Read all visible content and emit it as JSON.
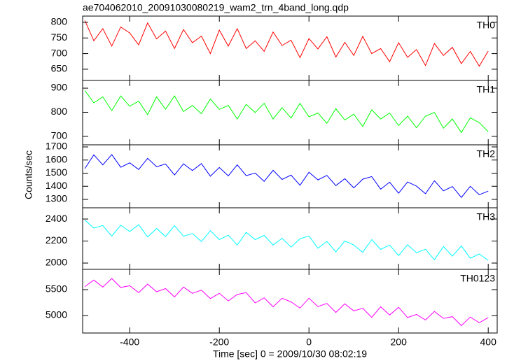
{
  "title": "ae704062010_20091030080219_wam2_trn_4band_long.qdp",
  "y_label": "Counts/sec",
  "x_label": "Time [sec] 0 = 2009/10/30 08:02:19",
  "chart_data": [
    {
      "type": "line",
      "xlim": [
        -505,
        420
      ],
      "ylim": [
        614,
        820
      ],
      "yticks": [
        650,
        700,
        750,
        800
      ],
      "x": [
        -500,
        -480,
        -460,
        -440,
        -420,
        -400,
        -380,
        -360,
        -340,
        -320,
        -300,
        -280,
        -260,
        -240,
        -220,
        -200,
        -180,
        -160,
        -140,
        -120,
        -100,
        -80,
        -60,
        -40,
        -20,
        0,
        20,
        40,
        60,
        80,
        100,
        120,
        140,
        160,
        180,
        200,
        220,
        240,
        260,
        280,
        300,
        320,
        340,
        360,
        380,
        400
      ],
      "series": [
        {
          "name": "TH0",
          "color": "#ff0000",
          "values": [
            806,
            741,
            780,
            724,
            785,
            766,
            728,
            798,
            747,
            772,
            716,
            777,
            735,
            756,
            700,
            775,
            724,
            780,
            716,
            741,
            707,
            769,
            726,
            743,
            687,
            748,
            715,
            754,
            689,
            736,
            694,
            755,
            700,
            716,
            674,
            735,
            688,
            713,
            662,
            732,
            694,
            720,
            668,
            707,
            660,
            708
          ]
        }
      ]
    },
    {
      "type": "line",
      "xlim": [
        -505,
        420
      ],
      "ylim": [
        665,
        932
      ],
      "yticks": [
        700,
        800,
        900
      ],
      "x": [
        -500,
        -480,
        -460,
        -440,
        -420,
        -400,
        -380,
        -360,
        -340,
        -320,
        -300,
        -280,
        -260,
        -240,
        -220,
        -200,
        -180,
        -160,
        -140,
        -120,
        -100,
        -80,
        -60,
        -40,
        -20,
        0,
        20,
        40,
        60,
        80,
        100,
        120,
        140,
        160,
        180,
        200,
        220,
        240,
        260,
        280,
        300,
        320,
        340,
        360,
        380,
        400
      ],
      "series": [
        {
          "name": "TH1",
          "color": "#00ff00",
          "values": [
            890,
            839,
            864,
            807,
            868,
            825,
            846,
            790,
            864,
            812,
            868,
            803,
            828,
            794,
            855,
            812,
            828,
            772,
            833,
            799,
            837,
            772,
            819,
            776,
            837,
            781,
            797,
            754,
            815,
            768,
            792,
            741,
            810,
            772,
            797,
            745,
            784,
            736,
            784,
            799,
            734,
            772,
            716,
            777,
            757,
            719
          ]
        }
      ]
    },
    {
      "type": "line",
      "xlim": [
        -505,
        420
      ],
      "ylim": [
        1236,
        1716
      ],
      "yticks": [
        1300,
        1400,
        1500,
        1600,
        1700
      ],
      "x": [
        -500,
        -480,
        -460,
        -440,
        -420,
        -400,
        -380,
        -360,
        -340,
        -320,
        -300,
        -280,
        -260,
        -240,
        -220,
        -200,
        -180,
        -160,
        -140,
        -120,
        -100,
        -80,
        -60,
        -40,
        -20,
        0,
        20,
        40,
        60,
        80,
        100,
        120,
        140,
        160,
        180,
        200,
        220,
        240,
        260,
        280,
        300,
        320,
        340,
        360,
        380,
        400
      ],
      "series": [
        {
          "name": "TH2",
          "color": "#0000ff",
          "values": [
            1535,
            1640,
            1563,
            1642,
            1545,
            1579,
            1528,
            1613,
            1549,
            1570,
            1486,
            1571,
            1520,
            1573,
            1477,
            1543,
            1479,
            1564,
            1481,
            1501,
            1437,
            1522,
            1452,
            1485,
            1408,
            1507,
            1449,
            1483,
            1405,
            1458,
            1388,
            1454,
            1474,
            1378,
            1431,
            1347,
            1433,
            1401,
            1343,
            1442,
            1365,
            1398,
            1315,
            1400,
            1336,
            1363
          ]
        }
      ]
    },
    {
      "type": "line",
      "xlim": [
        -505,
        420
      ],
      "ylim": [
        1943,
        2502
      ],
      "yticks": [
        2000,
        2200,
        2400
      ],
      "x": [
        -500,
        -480,
        -460,
        -440,
        -420,
        -400,
        -380,
        -360,
        -340,
        -320,
        -300,
        -280,
        -260,
        -240,
        -220,
        -200,
        -180,
        -160,
        -140,
        -120,
        -100,
        -80,
        -60,
        -40,
        -20,
        0,
        20,
        40,
        60,
        80,
        100,
        120,
        140,
        160,
        180,
        200,
        220,
        240,
        260,
        280,
        300,
        320,
        340,
        360,
        380,
        400
      ],
      "series": [
        {
          "name": "TH3",
          "color": "#00ffff",
          "values": [
            2390,
            2317,
            2341,
            2245,
            2344,
            2286,
            2348,
            2237,
            2314,
            2241,
            2340,
            2244,
            2268,
            2195,
            2294,
            2213,
            2253,
            2164,
            2279,
            2213,
            2252,
            2164,
            2225,
            2145,
            2221,
            2246,
            2135,
            2197,
            2101,
            2200,
            2164,
            2098,
            2213,
            2124,
            2164,
            2068,
            2167,
            2094,
            2125,
            2030,
            2151,
            2063,
            2155,
            2044,
            2083,
            2025
          ]
        }
      ]
    },
    {
      "type": "line",
      "xlim": [
        -505,
        420
      ],
      "ylim": [
        4662,
        5892
      ],
      "yticks": [
        5000,
        5500
      ],
      "xticks": [
        -400,
        -200,
        0,
        200,
        400
      ],
      "x": [
        -500,
        -480,
        -460,
        -440,
        -420,
        -400,
        -380,
        -360,
        -340,
        -320,
        -300,
        -280,
        -260,
        -240,
        -220,
        -200,
        -180,
        -160,
        -140,
        -120,
        -100,
        -80,
        -60,
        -40,
        -20,
        0,
        20,
        40,
        60,
        80,
        100,
        120,
        140,
        160,
        180,
        200,
        220,
        240,
        260,
        280,
        300,
        320,
        340,
        360,
        380,
        400
      ],
      "series": [
        {
          "name": "TH0123",
          "color": "#ff00ff",
          "values": [
            5559,
            5685,
            5550,
            5715,
            5542,
            5576,
            5442,
            5607,
            5459,
            5520,
            5360,
            5550,
            5429,
            5490,
            5329,
            5429,
            5282,
            5407,
            5442,
            5243,
            5342,
            5169,
            5334,
            5264,
            5143,
            5334,
            5173,
            5234,
            5061,
            5225,
            5091,
            5139,
            4965,
            5169,
            5009,
            5160,
            4961,
            5022,
            4913,
            5078,
            4944,
            4978,
            4805,
            4970,
            4861,
            4961
          ]
        }
      ]
    }
  ]
}
